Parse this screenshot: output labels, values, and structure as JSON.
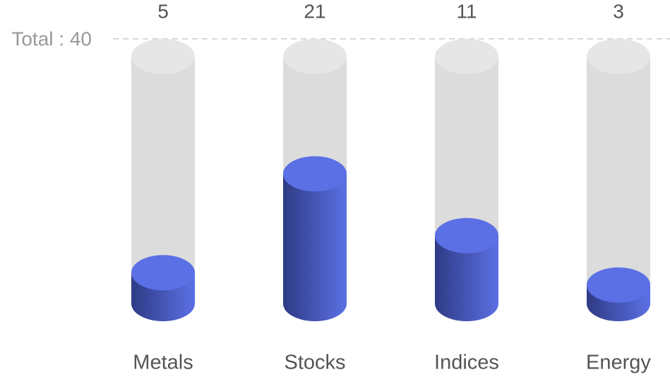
{
  "chart_data": {
    "type": "cylinder",
    "categories": [
      "Metals",
      "Stocks",
      "Indices",
      "Energy"
    ],
    "values": [
      5,
      21,
      11,
      3
    ],
    "color": "#5b70e5",
    "ylim": [
      0,
      40
    ],
    "yticks": [
      {
        "value": 40,
        "label": "Total : 40"
      }
    ],
    "grid": true
  }
}
